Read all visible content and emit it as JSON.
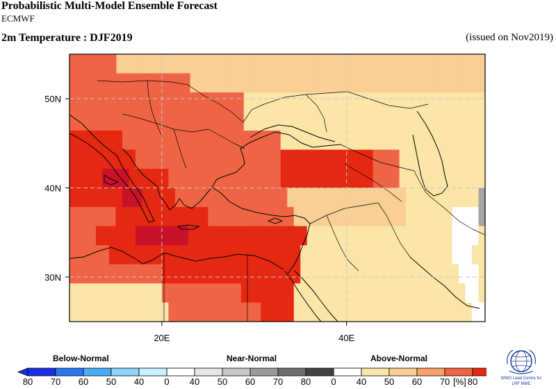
{
  "header": {
    "title": "Probabilistic Multi-Model Ensemble Forecast",
    "subtitle": "ECMWF",
    "variable_title": "2m Temperature : DJF2019",
    "issued": "(issued on Nov2019)"
  },
  "map": {
    "lon_range": [
      10,
      55
    ],
    "lat_range": [
      25,
      55
    ],
    "lat_ticks": [
      {
        "value": 50,
        "label": "50N"
      },
      {
        "value": 40,
        "label": "40N"
      },
      {
        "value": 30,
        "label": "30N"
      }
    ],
    "lon_ticks": [
      {
        "value": 20,
        "label": "20E"
      },
      {
        "value": 40,
        "label": "40E"
      }
    ],
    "grid_lines": true,
    "colors": {
      "above_40": "#fbe6a8",
      "above_50": "#f9cf94",
      "above_60": "#f7a06a",
      "above_70": "#ef6444",
      "above_80": "#e42811",
      "above_80_plus": "#c9122a",
      "near_normal": "#a6a6a6",
      "white": "#ffffff"
    }
  },
  "legend": {
    "categories": [
      "Below-Normal",
      "Near-Normal",
      "Above-Normal"
    ],
    "below_labels": [
      "80",
      "70",
      "60",
      "50",
      "40",
      "0"
    ],
    "near_labels": [
      "40",
      "50",
      "60",
      "70",
      "80",
      "0"
    ],
    "above_labels": [
      "40",
      "50",
      "60",
      "70",
      "80"
    ],
    "unit": "[%]",
    "below_colors": [
      "#1a2fe6",
      "#2a78f0",
      "#49aef6",
      "#8cd4fa",
      "#c8f0ff"
    ],
    "near_colors": [
      "#e6e6e6",
      "#c7c7c7",
      "#9a9a9a",
      "#6e6e6e",
      "#424242"
    ],
    "above_colors": [
      "#fbe6a8",
      "#f9cf94",
      "#f7a06a",
      "#ef6444",
      "#e42811"
    ]
  },
  "logo": {
    "line1": "WMO Lead Centre for",
    "line2": "LRF MME"
  }
}
